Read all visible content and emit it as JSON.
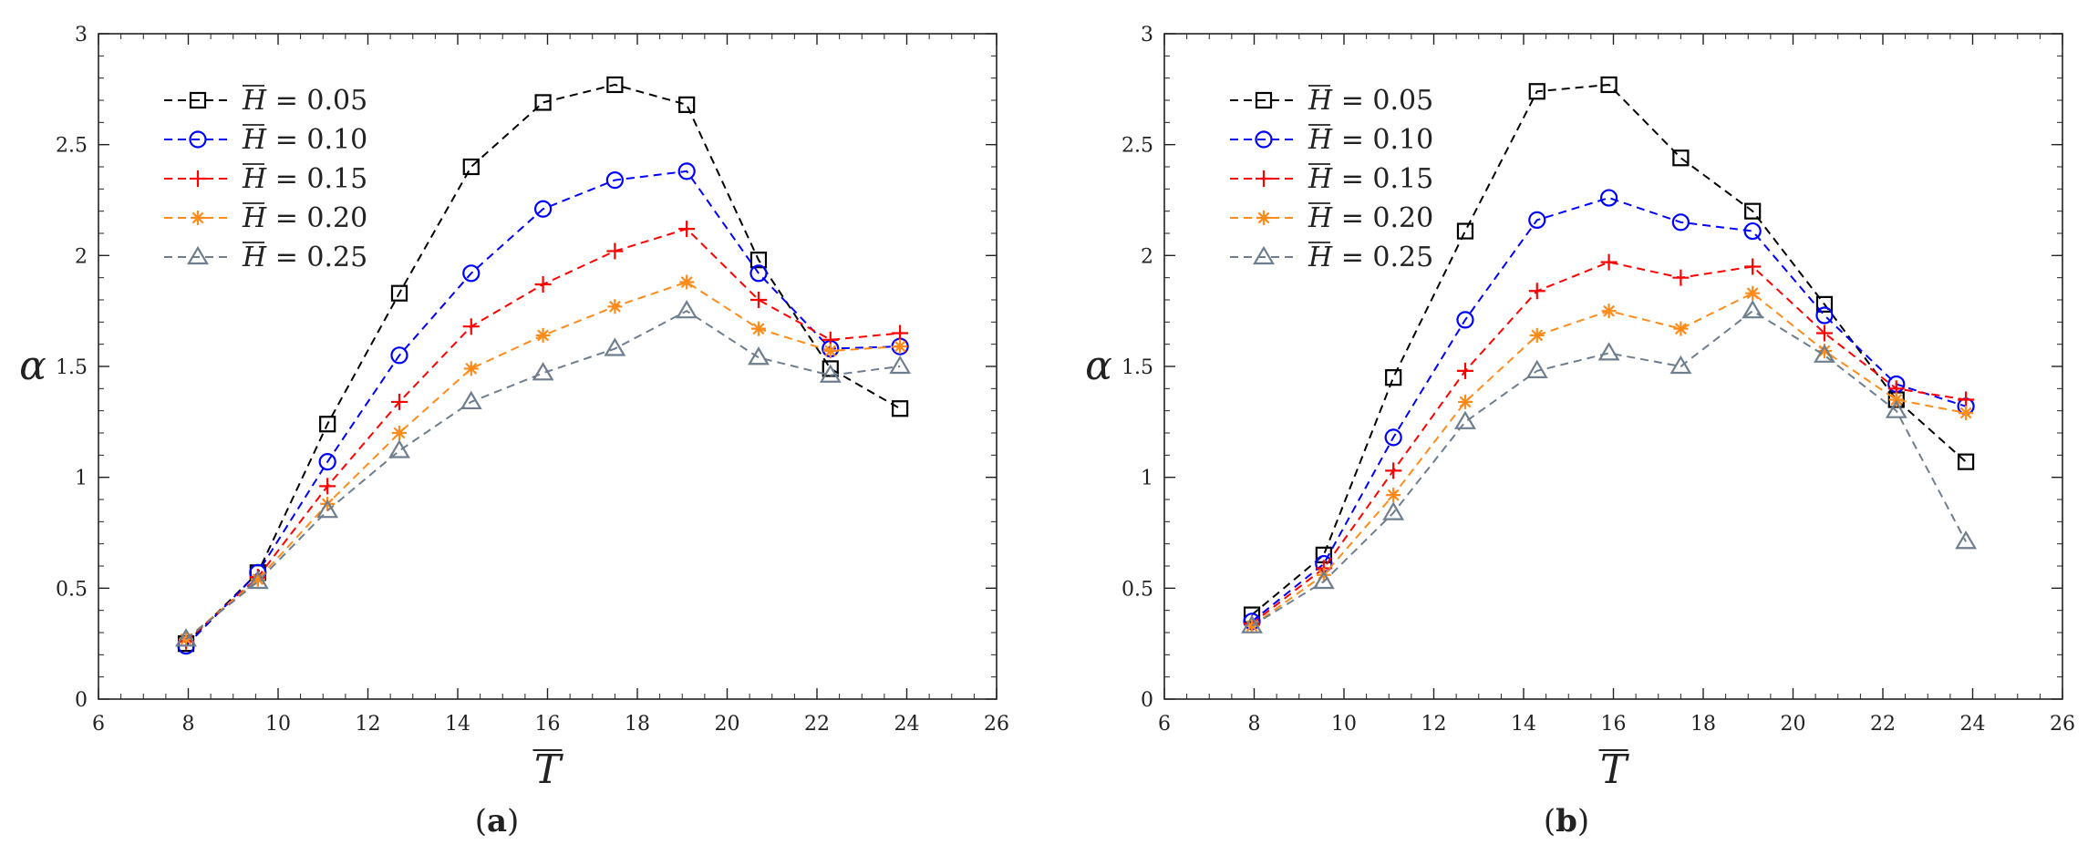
{
  "chart_data": [
    {
      "type": "line",
      "panel_label": "a",
      "caption": "(a)",
      "xlabel": "T",
      "ylabel": "α",
      "xlim": [
        6,
        26
      ],
      "ylim": [
        0,
        3
      ],
      "xticks": [
        "6",
        "8",
        "10",
        "12",
        "14",
        "16",
        "18",
        "20",
        "22",
        "24",
        "26"
      ],
      "yticks": [
        "0",
        "0.5",
        "1",
        "1.5",
        "2",
        "2.5",
        "3"
      ],
      "grid": false,
      "legend_position": "top-left",
      "x": [
        7.95,
        9.55,
        11.1,
        12.7,
        14.3,
        15.9,
        17.5,
        19.1,
        20.7,
        22.3,
        23.85
      ],
      "series": [
        {
          "name": "H = 0.05",
          "color": "#000000",
          "marker": "square",
          "values": [
            0.25,
            0.57,
            1.24,
            1.83,
            2.4,
            2.69,
            2.77,
            2.68,
            1.98,
            1.49,
            1.31
          ]
        },
        {
          "name": "H = 0.10",
          "color": "#0000ff",
          "marker": "circle",
          "values": [
            0.24,
            0.57,
            1.07,
            1.55,
            1.92,
            2.21,
            2.34,
            2.38,
            1.92,
            1.58,
            1.59
          ]
        },
        {
          "name": "H = 0.15",
          "color": "#ff0000",
          "marker": "plus",
          "values": [
            0.26,
            0.55,
            0.96,
            1.34,
            1.68,
            1.87,
            2.02,
            2.12,
            1.8,
            1.62,
            1.65
          ]
        },
        {
          "name": "H = 0.20",
          "color": "#ff8c1a",
          "marker": "asterisk",
          "values": [
            0.27,
            0.54,
            0.88,
            1.2,
            1.49,
            1.64,
            1.77,
            1.88,
            1.67,
            1.57,
            1.59
          ]
        },
        {
          "name": "H = 0.25",
          "color": "#6e7e8e",
          "marker": "triangle",
          "values": [
            0.27,
            0.53,
            0.85,
            1.12,
            1.34,
            1.47,
            1.58,
            1.75,
            1.54,
            1.46,
            1.5
          ]
        }
      ]
    },
    {
      "type": "line",
      "panel_label": "b",
      "caption": "(b)",
      "xlabel": "T",
      "ylabel": "α",
      "xlim": [
        6,
        26
      ],
      "ylim": [
        0,
        3
      ],
      "xticks": [
        "6",
        "8",
        "10",
        "12",
        "14",
        "16",
        "18",
        "20",
        "22",
        "24",
        "26"
      ],
      "yticks": [
        "0",
        "0.5",
        "1",
        "1.5",
        "2",
        "2.5",
        "3"
      ],
      "grid": false,
      "legend_position": "top-left",
      "x": [
        7.95,
        9.55,
        11.1,
        12.7,
        14.3,
        15.9,
        17.5,
        19.1,
        20.7,
        22.3,
        23.85
      ],
      "series": [
        {
          "name": "H = 0.05",
          "color": "#000000",
          "marker": "square",
          "values": [
            0.38,
            0.65,
            1.45,
            2.11,
            2.74,
            2.77,
            2.44,
            2.2,
            1.78,
            1.35,
            1.07
          ]
        },
        {
          "name": "H = 0.10",
          "color": "#0000ff",
          "marker": "circle",
          "values": [
            0.35,
            0.61,
            1.18,
            1.71,
            2.16,
            2.26,
            2.15,
            2.11,
            1.73,
            1.42,
            1.32
          ]
        },
        {
          "name": "H = 0.15",
          "color": "#ff0000",
          "marker": "plus",
          "values": [
            0.34,
            0.59,
            1.03,
            1.48,
            1.84,
            1.97,
            1.9,
            1.95,
            1.65,
            1.4,
            1.35
          ]
        },
        {
          "name": "H = 0.20",
          "color": "#ff8c1a",
          "marker": "asterisk",
          "values": [
            0.33,
            0.56,
            0.92,
            1.34,
            1.64,
            1.75,
            1.67,
            1.83,
            1.57,
            1.35,
            1.29
          ]
        },
        {
          "name": "H = 0.25",
          "color": "#6e7e8e",
          "marker": "triangle",
          "values": [
            0.33,
            0.53,
            0.84,
            1.25,
            1.48,
            1.56,
            1.5,
            1.75,
            1.55,
            1.3,
            0.71
          ]
        }
      ]
    }
  ]
}
